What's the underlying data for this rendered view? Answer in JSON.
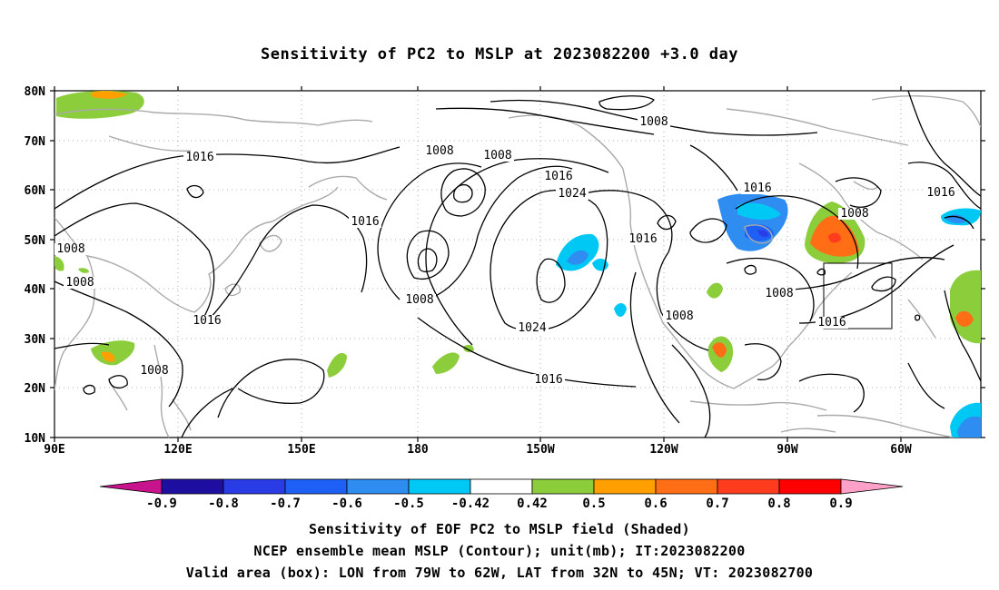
{
  "title": "Sensitivity of PC2 to MSLP at 2023082200 +3.0 day",
  "map": {
    "lat_labels": [
      "80N",
      "70N",
      "60N",
      "50N",
      "40N",
      "30N",
      "20N",
      "10N"
    ],
    "lon_labels": [
      "90E",
      "120E",
      "150E",
      "180",
      "150W",
      "120W",
      "90W",
      "60W"
    ],
    "lon_range": [
      "90E",
      "45W"
    ],
    "lat_range": [
      "10N",
      "80N"
    ],
    "grid": "dotted",
    "contour_labels": [
      "1016",
      "1008",
      "1008",
      "1016",
      "1024",
      "1016",
      "1016",
      "1016",
      "1008",
      "1008",
      "1008",
      "1016",
      "1008",
      "1024",
      "1008",
      "1008",
      "1016",
      "1016",
      "1008"
    ],
    "box": {
      "lon_from": "79W",
      "lon_to": "62W",
      "lat_from": "32N",
      "lat_to": "45N"
    }
  },
  "colorbar": {
    "labels": [
      "-0.9",
      "-0.8",
      "-0.7",
      "-0.6",
      "-0.5",
      "-0.42",
      "0.42",
      "0.5",
      "0.6",
      "0.7",
      "0.8",
      "0.9"
    ],
    "colors": [
      "#1e0fa0",
      "#2a3ce6",
      "#1e5ff5",
      "#2f8cf0",
      "#00c8f5",
      "#ffffff",
      "#8ccd3c",
      "#ffa000",
      "#ff6e14",
      "#ff3c1e",
      "#ff0000"
    ],
    "low_arrow": "#c8148c",
    "high_arrow": "#ffa0c8"
  },
  "footer": {
    "line1": "Sensitivity of EOF PC2 to MSLP field (Shaded)",
    "line2": "NCEP ensemble mean MSLP (Contour); unit(mb); IT:2023082200",
    "line3": "Valid area (box): LON from 79W to 62W, LAT from 32N to 45N; VT: 2023082700"
  }
}
